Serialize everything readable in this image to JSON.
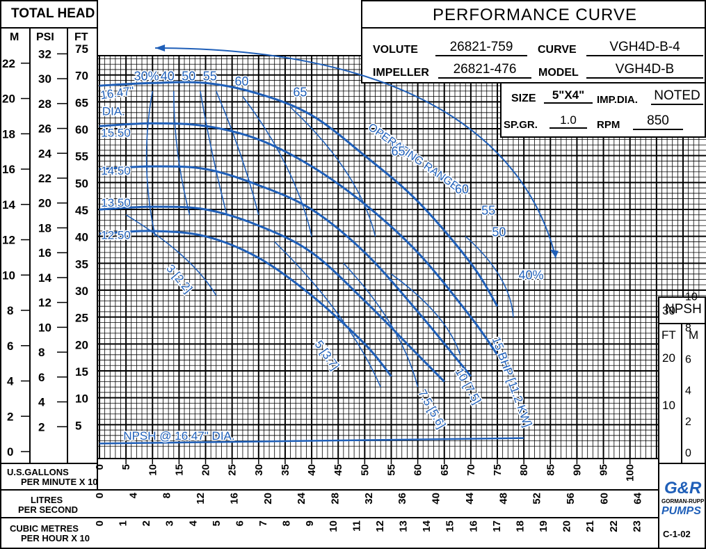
{
  "colors": {
    "curve": "#1f5fb8",
    "grid": "#000000",
    "background": "#ffffff"
  },
  "header": {
    "total_head": "TOTAL HEAD",
    "col_m": "M",
    "col_psi": "PSI",
    "col_ft": "FT",
    "title": "PERFORMANCE CURVE"
  },
  "specs": {
    "volute_label": "VOLUTE",
    "volute": "26821-759",
    "curve_label": "CURVE",
    "curve": "VGH4D-B-4",
    "impeller_label": "IMPELLER",
    "impeller": "26821-476",
    "model_label": "MODEL",
    "model": "VGH4D-B",
    "size_label": "SIZE",
    "size": "5\"X4\"",
    "impdia_label": "IMP.DIA.",
    "impdia": "NOTED",
    "spgr_label": "SP.GR.",
    "spgr": "1.0",
    "rpm_label": "RPM",
    "rpm": "850"
  },
  "npsh_box": {
    "title": "NPSH",
    "ft": "FT",
    "m": "M"
  },
  "footer": {
    "gpm_label_1": "U.S.GALLONS",
    "gpm_label_2": "PER MINUTE X 10",
    "lps_label_1": "LITRES",
    "lps_label_2": "PER SECOND",
    "cmh_label_1": "CUBIC METRES",
    "cmh_label_2": "PER HOUR X 10",
    "logo_1": "G&R",
    "logo_2": "GORMAN-RUPP",
    "logo_3": "PUMPS",
    "code": "C-1-02"
  },
  "chart_data": {
    "type": "line",
    "title": "PERFORMANCE CURVE",
    "xlabel": "U.S.GALLONS PER MINUTE X 10",
    "ylabel": "TOTAL HEAD",
    "xlim": [
      0,
      113
    ],
    "ylim": [
      0,
      76
    ],
    "grid": true,
    "x_ticks": [
      0,
      5,
      10,
      15,
      20,
      25,
      30,
      35,
      40,
      45,
      50,
      55,
      60,
      65,
      70,
      75,
      80,
      85,
      90,
      95,
      100
    ],
    "ft_ticks": [
      5,
      10,
      15,
      20,
      25,
      30,
      35,
      40,
      45,
      50,
      55,
      60,
      65,
      70,
      75
    ],
    "psi_ticks": [
      2,
      4,
      6,
      8,
      10,
      12,
      14,
      16,
      18,
      20,
      22,
      24,
      26,
      28,
      30,
      32
    ],
    "m_ticks": [
      0,
      2,
      4,
      6,
      8,
      10,
      12,
      14,
      16,
      18,
      20,
      22
    ],
    "npsh_ft_ticks": [
      10,
      20,
      30
    ],
    "npsh_m_ticks": [
      0,
      2,
      4,
      6,
      8,
      10
    ],
    "lps_ticks": [
      0,
      4,
      8,
      12,
      16,
      20,
      24,
      28,
      32,
      36,
      40,
      44,
      48,
      52,
      56,
      60,
      64
    ],
    "cmh_ticks": [
      0,
      1,
      2,
      3,
      4,
      5,
      6,
      7,
      8,
      9,
      10,
      11,
      12,
      13,
      14,
      15,
      16,
      17,
      18,
      19,
      20,
      21,
      22,
      23
    ],
    "series": [
      {
        "name": "16.47\" DIA.",
        "x": [
          0,
          10,
          20,
          30,
          40,
          50,
          60,
          70,
          75
        ],
        "y": [
          68,
          68.5,
          68.5,
          66.5,
          62.5,
          55,
          46.5,
          35,
          27
        ]
      },
      {
        "name": "15.50",
        "x": [
          0,
          10,
          20,
          30,
          40,
          50,
          60,
          70,
          75
        ],
        "y": [
          60.5,
          61,
          60.5,
          58,
          53,
          46,
          37,
          25,
          18
        ]
      },
      {
        "name": "14.50",
        "x": [
          0,
          10,
          20,
          30,
          40,
          50,
          60,
          70
        ],
        "y": [
          52.5,
          53,
          52.5,
          49.5,
          45,
          37,
          26,
          14
        ]
      },
      {
        "name": "13.50",
        "x": [
          0,
          10,
          20,
          30,
          40,
          50,
          60,
          65
        ],
        "y": [
          45,
          45.5,
          45,
          42,
          37,
          28,
          18,
          13
        ]
      },
      {
        "name": "12.50",
        "x": [
          0,
          10,
          20,
          30,
          40,
          50,
          55
        ],
        "y": [
          40.5,
          41,
          40,
          36,
          29,
          20,
          14
        ]
      }
    ],
    "efficiency_labels": [
      "30%",
      "40",
      "50",
      "55",
      "60",
      "65",
      "65",
      "60",
      "55",
      "50",
      "40%"
    ],
    "bhp_labels": [
      "3 [2.2]",
      "5 [3.7]",
      "7.5 [5.6]",
      "10 [7.5]",
      "15 BHP [11.2 KW]"
    ],
    "annotations": [
      "16.47\"",
      "DIA.",
      "15.50",
      "14.50",
      "13.50",
      "12.50",
      "OPERATING RANGE",
      "NPSH @ 16.47\" DIA."
    ],
    "npsh": {
      "name": "NPSH @ 16.47\" DIA.",
      "x": [
        0,
        40,
        80
      ],
      "y": [
        1.5,
        2,
        2.5
      ]
    }
  }
}
